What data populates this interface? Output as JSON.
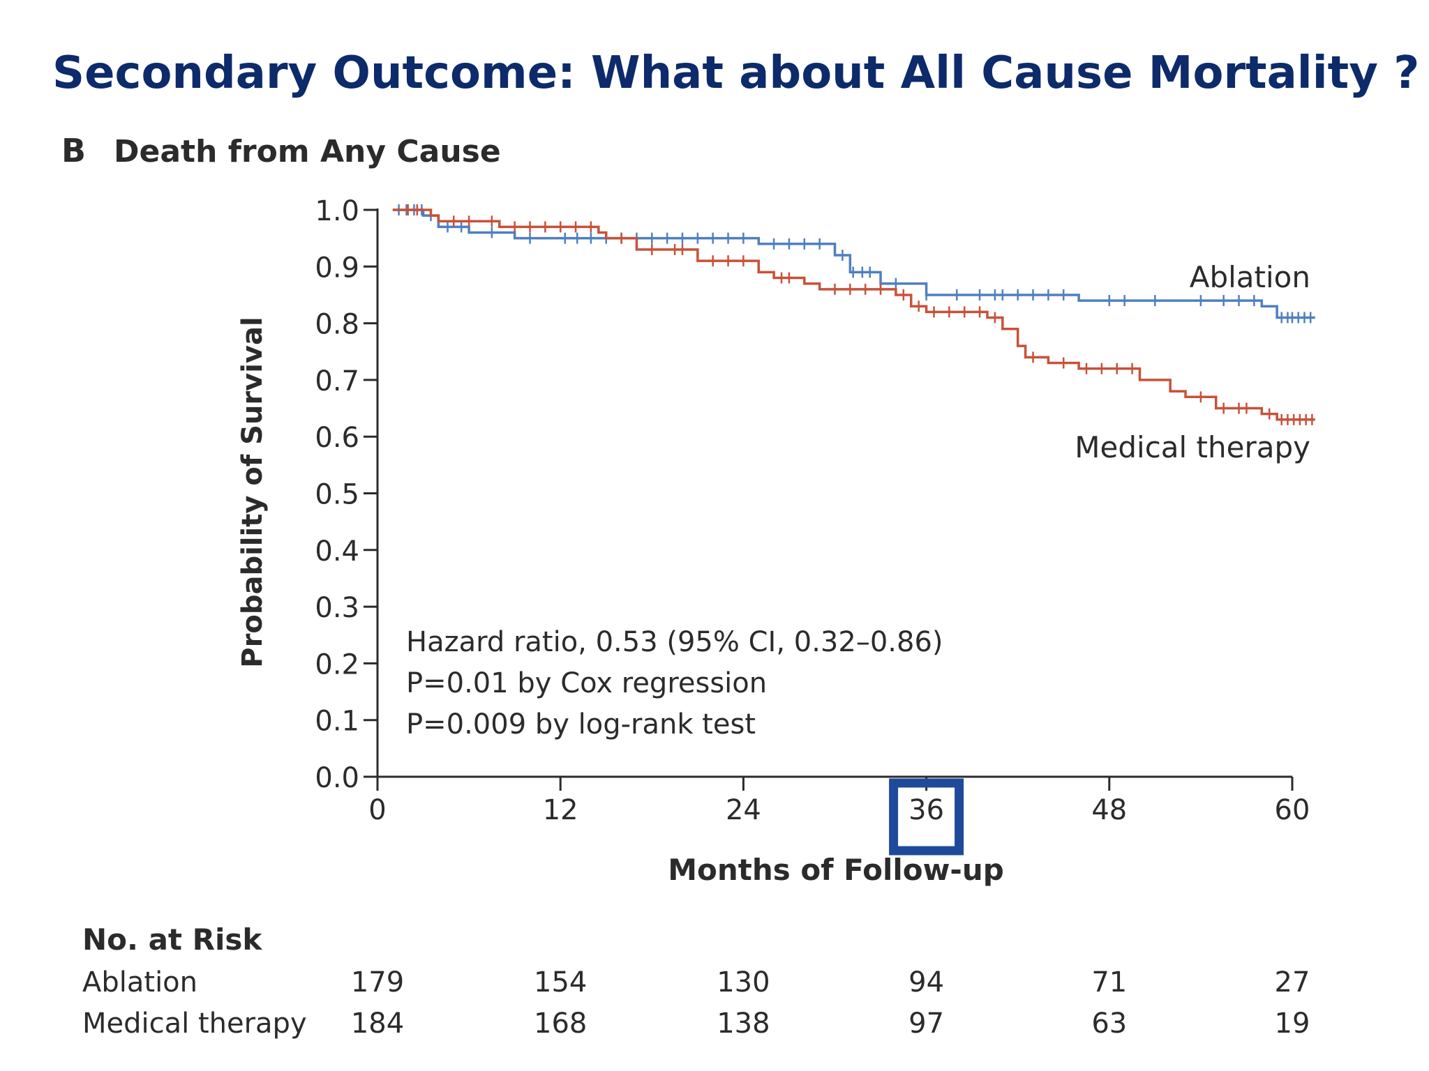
{
  "slide": {
    "title": "Secondary Outcome: What about All Cause Mortality ?"
  },
  "chart_data": {
    "type": "line",
    "panel_letter": "B",
    "title": "Death from Any Cause",
    "xlabel": "Months of Follow-up",
    "ylabel": "Probability of Survival",
    "xlim": [
      0,
      60
    ],
    "ylim": [
      0,
      1.0
    ],
    "x_ticks": [
      "0",
      "12",
      "24",
      "36",
      "48",
      "60"
    ],
    "y_ticks": [
      "0.0",
      "0.1",
      "0.2",
      "0.3",
      "0.4",
      "0.5",
      "0.6",
      "0.7",
      "0.8",
      "0.9",
      "1.0"
    ],
    "highlighted_tick": "36",
    "annotations": [
      "Hazard ratio, 0.53 (95% CI, 0.32–0.86)",
      "P=0.01 by Cox regression",
      "P=0.009 by log-rank test"
    ],
    "series": [
      {
        "name": "Ablation",
        "color": "#4f7fc1",
        "steps": [
          [
            1,
            1.0
          ],
          [
            3,
            0.99
          ],
          [
            4,
            0.97
          ],
          [
            6,
            0.96
          ],
          [
            9,
            0.95
          ],
          [
            25,
            0.94
          ],
          [
            30,
            0.92
          ],
          [
            31,
            0.89
          ],
          [
            33,
            0.87
          ],
          [
            36,
            0.85
          ],
          [
            46,
            0.84
          ],
          [
            58,
            0.83
          ],
          [
            59,
            0.81
          ],
          [
            61.5,
            0.81
          ]
        ],
        "censored_x": [
          1.4,
          1.9,
          2.4,
          2.9,
          3.5,
          4.6,
          5.5,
          7.5,
          10,
          12.3,
          13.1,
          14,
          15,
          16,
          17,
          18,
          19,
          20,
          21,
          22,
          23,
          24,
          26,
          27,
          28,
          29,
          30.5,
          31.2,
          31.8,
          32.3,
          33,
          34,
          36,
          38,
          39.5,
          40.5,
          41,
          42,
          43,
          44,
          45,
          48,
          49,
          51,
          54,
          55.5,
          56.5,
          57.5,
          59.3,
          59.7,
          60,
          60.4,
          60.8,
          61.2
        ]
      },
      {
        "name": "Medical therapy",
        "color": "#c8513a",
        "steps": [
          [
            1,
            1.0
          ],
          [
            3.5,
            0.99
          ],
          [
            4,
            0.98
          ],
          [
            7,
            0.98
          ],
          [
            8,
            0.97
          ],
          [
            14.5,
            0.96
          ],
          [
            15,
            0.95
          ],
          [
            17,
            0.93
          ],
          [
            21,
            0.91
          ],
          [
            25,
            0.89
          ],
          [
            26,
            0.88
          ],
          [
            28,
            0.87
          ],
          [
            29,
            0.86
          ],
          [
            34,
            0.85
          ],
          [
            35,
            0.83
          ],
          [
            36,
            0.82
          ],
          [
            40,
            0.81
          ],
          [
            41,
            0.79
          ],
          [
            42,
            0.76
          ],
          [
            42.5,
            0.74
          ],
          [
            44,
            0.73
          ],
          [
            46,
            0.72
          ],
          [
            50,
            0.7
          ],
          [
            52,
            0.68
          ],
          [
            53,
            0.67
          ],
          [
            55,
            0.65
          ],
          [
            58,
            0.64
          ],
          [
            59,
            0.63
          ],
          [
            61.5,
            0.63
          ]
        ],
        "censored_x": [
          2,
          2.6,
          5,
          6,
          7.5,
          9,
          10,
          11,
          12,
          13,
          14,
          16,
          18,
          19.5,
          20,
          22,
          23,
          24,
          26.5,
          27,
          30,
          31,
          32,
          33,
          34.5,
          35.5,
          36.5,
          37.5,
          38.5,
          39.5,
          40.5,
          43,
          45,
          46.5,
          47.5,
          48.5,
          49.5,
          54,
          55.5,
          56.5,
          57,
          58.5,
          59.3,
          59.7,
          60.1,
          60.5,
          60.9,
          61.3
        ]
      }
    ],
    "series_labels": {
      "ablation": "Ablation",
      "medical": "Medical therapy"
    },
    "risk_table": {
      "title": "No. at Risk",
      "rows": [
        {
          "label": "Ablation",
          "values": [
            "179",
            "154",
            "130",
            "94",
            "71",
            "27"
          ]
        },
        {
          "label": "Medical therapy",
          "values": [
            "184",
            "168",
            "138",
            "97",
            "63",
            "19"
          ]
        }
      ]
    }
  }
}
